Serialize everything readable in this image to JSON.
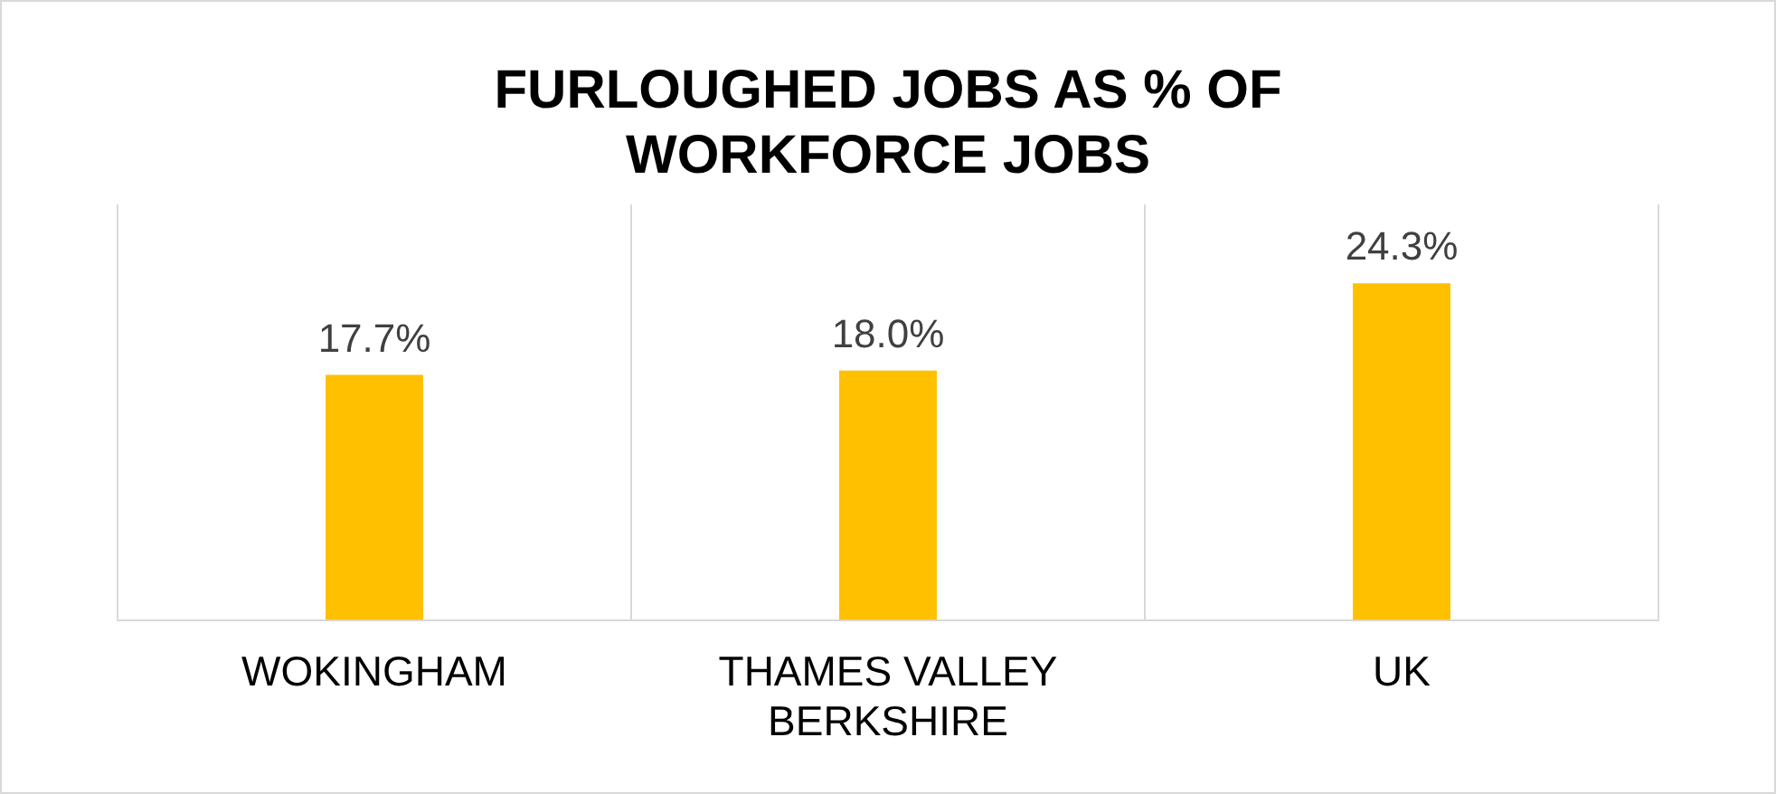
{
  "chart_data": {
    "type": "bar",
    "title": "FURLOUGHED JOBS AS % OF WORKFORCE JOBS",
    "categories": [
      "WOKINGHAM",
      "THAMES VALLEY BERKSHIRE",
      "UK"
    ],
    "values": [
      17.7,
      18.0,
      24.3
    ],
    "value_labels": [
      "17.7%",
      "18.0%",
      "24.3%"
    ],
    "color": "#ffc000",
    "grid": "x",
    "legend": false
  }
}
